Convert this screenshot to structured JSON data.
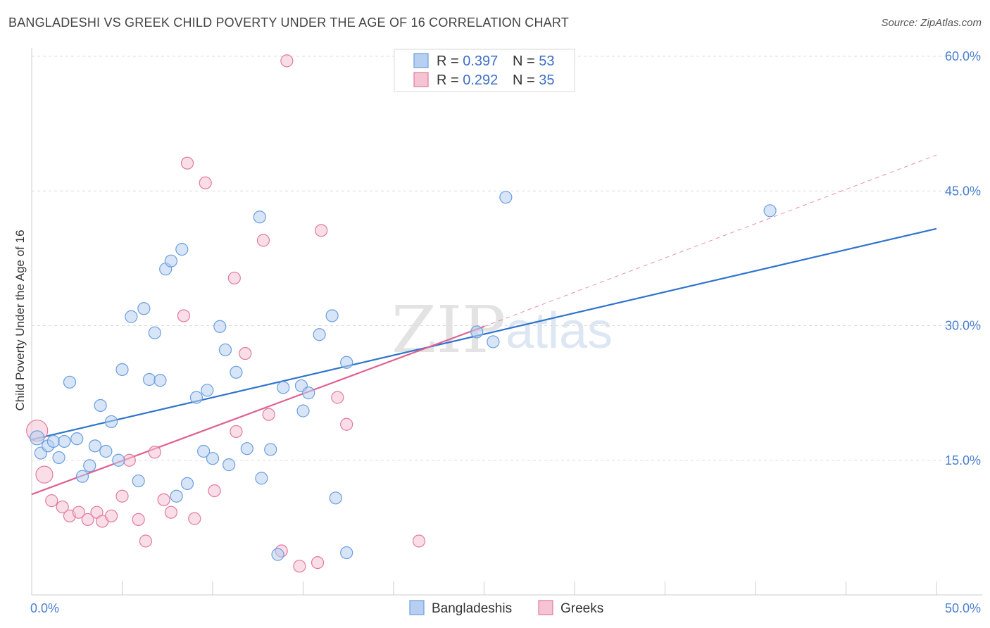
{
  "title": "BANGLADESHI VS GREEK CHILD POVERTY UNDER THE AGE OF 16 CORRELATION CHART",
  "source": "Source: ZipAtlas.com",
  "watermark": {
    "zip": "ZIP",
    "atlas": "atlas"
  },
  "colors": {
    "blue": "#6a9ee0",
    "blue_fill": "#b7cff0",
    "pink": "#e07a9e",
    "pink_fill": "#f6c3d3",
    "blue_line": "#2f74cc",
    "pink_line": "#e0608f"
  },
  "legend": {
    "rows": [
      {
        "r_label": "R = ",
        "r_value": "0.397",
        "n_label": "N = ",
        "n_value": "53"
      },
      {
        "r_label": "R = ",
        "r_value": "0.292",
        "n_label": "N = ",
        "n_value": "35"
      }
    ]
  },
  "chart_data": {
    "type": "scatter",
    "title": "BANGLADESHI VS GREEK CHILD POVERTY UNDER THE AGE OF 16 CORRELATION CHART",
    "xlabel": "",
    "ylabel": "Child Poverty Under the Age of 16",
    "xlim": [
      0,
      50
    ],
    "ylim": [
      0,
      60
    ],
    "x_tick_labels": [
      "0.0%",
      "50.0%"
    ],
    "y_tick_labels": [
      "15.0%",
      "30.0%",
      "45.0%",
      "60.0%"
    ],
    "y_ticks": [
      15,
      30,
      45,
      60
    ],
    "series": [
      {
        "name": "Bangladeshis",
        "color": "blue",
        "trend": {
          "x0": 0,
          "y0": 17.3,
          "x1": 50,
          "y1": 40.8
        },
        "points": [
          [
            0.3,
            17.5
          ],
          [
            0.5,
            15.8
          ],
          [
            0.9,
            16.6
          ],
          [
            1.2,
            17.1
          ],
          [
            1.5,
            15.3
          ],
          [
            1.8,
            17.1
          ],
          [
            2.1,
            23.7
          ],
          [
            2.5,
            17.4
          ],
          [
            2.8,
            13.2
          ],
          [
            3.2,
            14.4
          ],
          [
            3.5,
            16.6
          ],
          [
            3.8,
            21.1
          ],
          [
            4.1,
            16.0
          ],
          [
            4.4,
            19.3
          ],
          [
            4.8,
            15.0
          ],
          [
            5.0,
            25.1
          ],
          [
            5.5,
            31.0
          ],
          [
            5.9,
            12.7
          ],
          [
            6.2,
            31.9
          ],
          [
            6.5,
            24.0
          ],
          [
            6.8,
            29.2
          ],
          [
            7.1,
            23.9
          ],
          [
            7.4,
            36.3
          ],
          [
            7.7,
            37.2
          ],
          [
            8.0,
            11.0
          ],
          [
            8.3,
            38.5
          ],
          [
            8.6,
            12.4
          ],
          [
            9.1,
            22.0
          ],
          [
            9.5,
            16.0
          ],
          [
            9.7,
            22.8
          ],
          [
            10.0,
            15.2
          ],
          [
            10.4,
            29.9
          ],
          [
            10.7,
            27.3
          ],
          [
            10.9,
            14.5
          ],
          [
            11.3,
            24.8
          ],
          [
            11.9,
            16.3
          ],
          [
            12.6,
            42.1
          ],
          [
            12.7,
            13.0
          ],
          [
            13.2,
            16.2
          ],
          [
            13.6,
            4.5
          ],
          [
            13.9,
            23.1
          ],
          [
            14.9,
            23.3
          ],
          [
            15.0,
            20.5
          ],
          [
            15.3,
            22.5
          ],
          [
            15.9,
            29.0
          ],
          [
            16.6,
            31.1
          ],
          [
            16.8,
            10.8
          ],
          [
            17.4,
            25.9
          ],
          [
            17.4,
            4.7
          ],
          [
            24.6,
            29.3
          ],
          [
            25.5,
            28.2
          ],
          [
            26.2,
            44.3
          ],
          [
            40.8,
            42.8
          ]
        ]
      },
      {
        "name": "Greeks",
        "color": "pink",
        "trend": {
          "x0": 0,
          "y0": 11.2,
          "x1": 25,
          "y1": 29.9
        },
        "trend_extension": {
          "x0": 25,
          "y0": 29.9,
          "x1": 50,
          "y1": 49.0
        },
        "points": [
          [
            0.3,
            18.3
          ],
          [
            0.7,
            13.4
          ],
          [
            1.1,
            10.5
          ],
          [
            1.7,
            9.8
          ],
          [
            2.1,
            8.8
          ],
          [
            2.6,
            9.2
          ],
          [
            3.1,
            8.4
          ],
          [
            3.6,
            9.2
          ],
          [
            3.9,
            8.2
          ],
          [
            4.4,
            8.8
          ],
          [
            5.0,
            11.0
          ],
          [
            5.4,
            15.0
          ],
          [
            5.9,
            8.4
          ],
          [
            6.3,
            6.0
          ],
          [
            6.8,
            15.9
          ],
          [
            7.3,
            10.6
          ],
          [
            7.7,
            9.2
          ],
          [
            8.4,
            31.1
          ],
          [
            8.6,
            48.1
          ],
          [
            9.0,
            8.5
          ],
          [
            9.6,
            45.9
          ],
          [
            10.1,
            11.6
          ],
          [
            11.2,
            35.3
          ],
          [
            11.3,
            18.2
          ],
          [
            11.8,
            26.9
          ],
          [
            12.8,
            39.5
          ],
          [
            13.1,
            20.1
          ],
          [
            13.8,
            4.9
          ],
          [
            14.1,
            59.5
          ],
          [
            14.8,
            3.2
          ],
          [
            15.8,
            3.6
          ],
          [
            16.0,
            40.6
          ],
          [
            16.9,
            22.0
          ],
          [
            17.4,
            19.0
          ],
          [
            21.4,
            6.0
          ]
        ]
      }
    ]
  }
}
